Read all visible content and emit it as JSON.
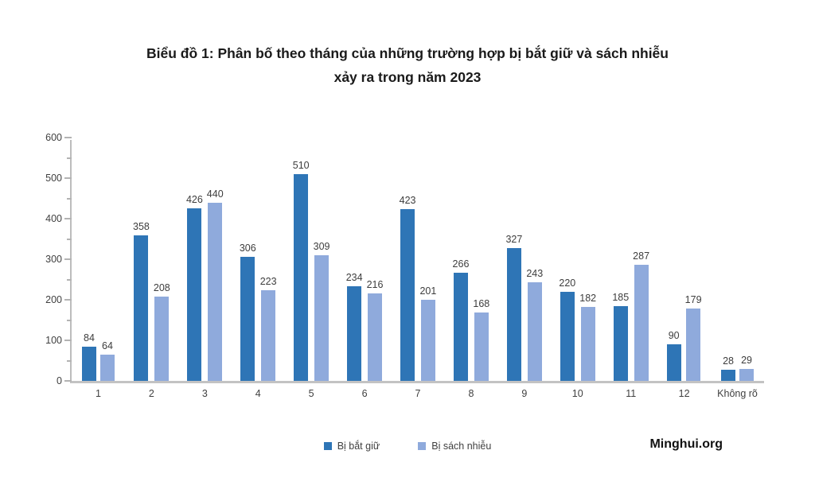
{
  "title": {
    "line1": "Biểu đồ 1: Phân bố theo tháng của những trường hợp bị bắt giữ và sách nhiễu",
    "line2": "xảy ra trong năm 2023"
  },
  "watermark": "Minghui.org",
  "chart_data": {
    "type": "bar",
    "title": "Biểu đồ 1: Phân bố theo tháng của những trường hợp bị bắt giữ và sách nhiễu xảy ra trong năm 2023",
    "categories": [
      "1",
      "2",
      "3",
      "4",
      "5",
      "6",
      "7",
      "8",
      "9",
      "10",
      "11",
      "12",
      "Không rõ"
    ],
    "series": [
      {
        "name": "Bị bắt giữ",
        "color": "#2E75B6",
        "values": [
          84,
          358,
          426,
          306,
          510,
          234,
          423,
          266,
          327,
          220,
          185,
          90,
          28
        ]
      },
      {
        "name": "Bị sách nhiễu",
        "color": "#8FAADC",
        "values": [
          64,
          208,
          440,
          223,
          309,
          216,
          201,
          168,
          243,
          182,
          287,
          179,
          29
        ]
      }
    ],
    "xlabel": "",
    "ylabel": "",
    "ylim": [
      0,
      600
    ],
    "ytick_major": 100,
    "ytick_minor": 50,
    "grid": false,
    "legend_position": "bottom",
    "value_labels": true
  }
}
